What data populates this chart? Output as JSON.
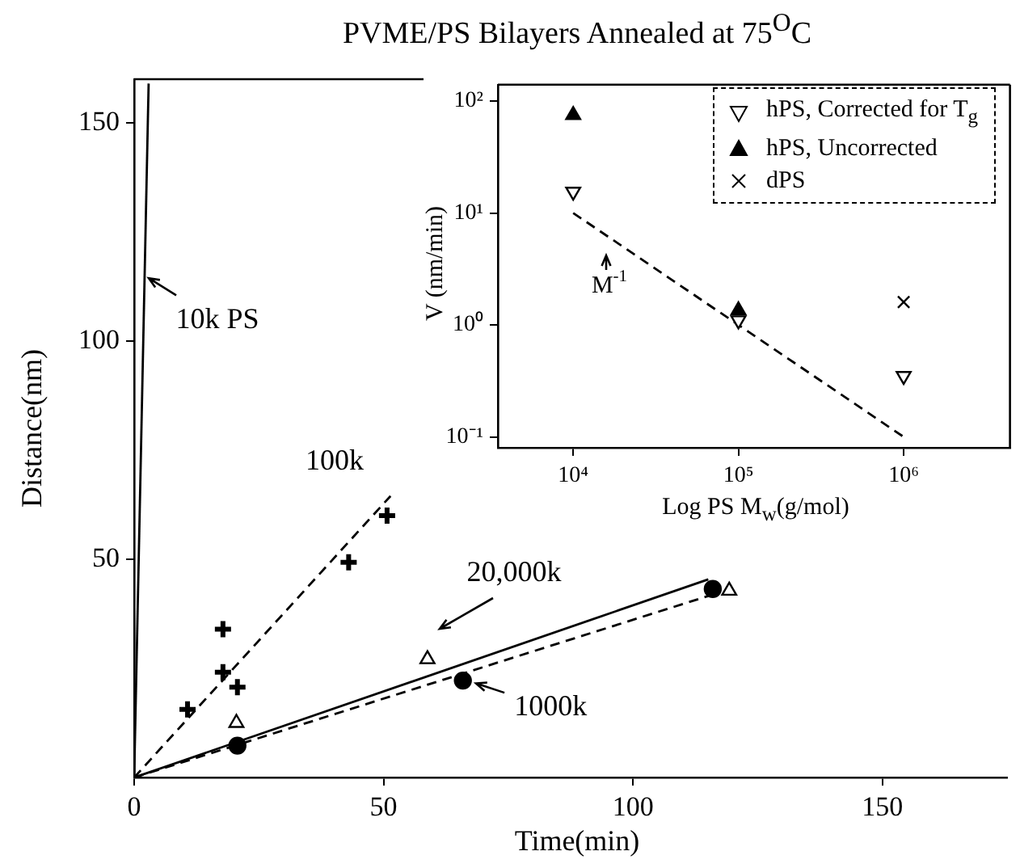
{
  "chart_data": [
    {
      "type": "scatter",
      "title": "PVME/PS Bilayers Annealed at 75$^{O}$C",
      "xlabel": "Time(min)",
      "ylabel": "Distance(nm)",
      "xlim": [
        0,
        175
      ],
      "ylim": [
        0,
        160
      ],
      "xticks": [
        0,
        50,
        100,
        150
      ],
      "yticks": [
        50,
        100,
        150
      ],
      "grid": false,
      "legend": false,
      "series": [
        {
          "type": "line",
          "color": "#000000",
          "x": [
            0,
            2.9
          ],
          "values": [
            0,
            159
          ],
          "line_style": "solid",
          "marker": "none"
        },
        {
          "type": "line",
          "color": "#000000",
          "x": [
            0,
            51.4
          ],
          "values": [
            0,
            64.5
          ],
          "line_style": "dashed",
          "marker": "none"
        },
        {
          "color": "#000000",
          "x": [
            10.7,
            17.8,
            17.8,
            20.7,
            43,
            50.7
          ],
          "values": [
            15.6,
            34,
            24.1,
            20.7,
            49.3,
            60
          ],
          "marker": "plus"
        },
        {
          "type": "line",
          "color": "#000000",
          "x": [
            0,
            115.4
          ],
          "values": [
            0,
            41.7
          ],
          "line_style": "dashed",
          "marker": "none"
        },
        {
          "color": "#000000",
          "x": [
            20.7,
            65.9,
            116
          ],
          "values": [
            7.3,
            22.2,
            43.2
          ],
          "marker": "circle"
        },
        {
          "type": "line",
          "color": "#000000",
          "x": [
            0,
            115.1
          ],
          "values": [
            0,
            45.4
          ],
          "line_style": "solid",
          "marker": "none"
        },
        {
          "color": "#000000",
          "x": [
            20.5,
            58.8,
            119.3
          ],
          "values": [
            12.5,
            27.1,
            42.8
          ],
          "marker": "triangle"
        }
      ],
      "annotations": [
        {
          "text": "10k PS",
          "x": 2.1,
          "y": 115
        },
        "100k",
        "20,000k",
        {
          "text": "1000k",
          "x": 67.6,
          "y": 21.9
        }
      ]
    },
    {
      "type": "scatter",
      "xlabel": "Log PS M$_{w}$(g/mol)",
      "ylabel": "V (nm/min)",
      "log": "xy",
      "xlim": [
        3500,
        4400000
      ],
      "ylim": [
        0.08,
        140
      ],
      "xticks": [
        {
          "value": 10000,
          "label": "10⁴"
        },
        {
          "value": 100000,
          "label": "10⁵"
        },
        {
          "value": 1000000,
          "label": "10⁶"
        }
      ],
      "yticks": [
        {
          "value": 0.1,
          "label": "10⁻¹"
        },
        {
          "value": 1,
          "label": "10⁰"
        },
        {
          "value": 10,
          "label": "10¹"
        },
        {
          "value": 100,
          "label": "10²"
        }
      ],
      "grid": false,
      "legend": "top right",
      "series": [
        {
          "name": "hPS, Corrected for T$_{g}$",
          "color": "#000000",
          "x": [
            10000,
            100000,
            1000000
          ],
          "values": [
            15.5,
            1.1,
            0.35
          ],
          "marker": "triangle-down"
        },
        {
          "name": "hPS, Uncorrected",
          "color": "#000000",
          "x": [
            10000,
            100000
          ],
          "values": [
            75,
            1.35
          ],
          "marker": "triangle"
        },
        {
          "name": "dPS",
          "color": "#000000",
          "x": [
            1000000
          ],
          "values": [
            1.6
          ],
          "marker": "cross"
        },
        {
          "type": "line",
          "color": "#000000",
          "x": [
            10000,
            1000000
          ],
          "values": [
            10,
            0.1
          ],
          "line_style": "dashed",
          "marker": "none"
        }
      ],
      "annotations": [
        "M$^{-1}$"
      ]
    }
  ]
}
